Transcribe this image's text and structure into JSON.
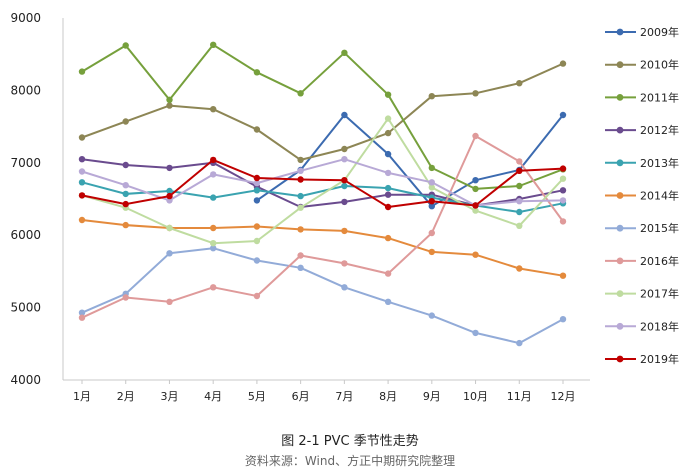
{
  "caption": {
    "title": "图 2-1 PVC 季节性走势",
    "source": "资料来源：Wind、方正中期研究院整理"
  },
  "chart_data": {
    "type": "line",
    "categories": [
      "1月",
      "2月",
      "3月",
      "4月",
      "5月",
      "6月",
      "7月",
      "8月",
      "9月",
      "10月",
      "11月",
      "12月"
    ],
    "ylim": [
      4000,
      9000
    ],
    "yticks": [
      4000,
      5000,
      6000,
      7000,
      8000,
      9000
    ],
    "grid": false,
    "legend": "right",
    "series": [
      {
        "name": "2009年",
        "color": "#3c6bb0",
        "values": [
          null,
          null,
          null,
          null,
          6480,
          6900,
          7660,
          7120,
          6400,
          6760,
          6900,
          7660
        ]
      },
      {
        "name": "2010年",
        "color": "#8d8655",
        "values": [
          7350,
          7570,
          7790,
          7740,
          7460,
          7040,
          7190,
          7410,
          7920,
          7960,
          8100,
          8370
        ]
      },
      {
        "name": "2011年",
        "color": "#76a03c",
        "values": [
          8260,
          8620,
          7870,
          8630,
          8250,
          7960,
          8520,
          7940,
          6930,
          6640,
          6680,
          6910
        ]
      },
      {
        "name": "2012年",
        "color": "#6a4b8e",
        "values": [
          7050,
          6970,
          6930,
          7000,
          6670,
          6390,
          6460,
          6560,
          6560,
          6410,
          6500,
          6620
        ]
      },
      {
        "name": "2013年",
        "color": "#3aa3b0",
        "values": [
          6730,
          6570,
          6610,
          6520,
          6620,
          6540,
          6680,
          6650,
          6520,
          6410,
          6320,
          6440
        ]
      },
      {
        "name": "2014年",
        "color": "#e48a3c",
        "values": [
          6210,
          6140,
          6100,
          6100,
          6120,
          6080,
          6060,
          5960,
          5770,
          5730,
          5540,
          5440
        ]
      },
      {
        "name": "2015年",
        "color": "#92abd8",
        "values": [
          4930,
          5190,
          5750,
          5820,
          5650,
          5550,
          5280,
          5080,
          4890,
          4650,
          4510,
          4840
        ]
      },
      {
        "name": "2016年",
        "color": "#df9a9a",
        "values": [
          4860,
          5140,
          5080,
          5280,
          5160,
          5720,
          5610,
          5470,
          6030,
          7370,
          7020,
          6190
        ]
      },
      {
        "name": "2017年",
        "color": "#bfdca0",
        "values": [
          6550,
          6380,
          6100,
          5890,
          5920,
          6380,
          6760,
          7610,
          6660,
          6340,
          6130,
          6780
        ]
      },
      {
        "name": "2018年",
        "color": "#b8a9d6",
        "values": [
          6880,
          6690,
          6480,
          6840,
          6720,
          6890,
          7050,
          6860,
          6730,
          6410,
          6470,
          6480
        ]
      },
      {
        "name": "2019年",
        "color": "#c00000",
        "values": [
          6550,
          6430,
          6540,
          7040,
          6790,
          6770,
          6760,
          6390,
          6470,
          6410,
          6890,
          6920
        ]
      }
    ]
  }
}
